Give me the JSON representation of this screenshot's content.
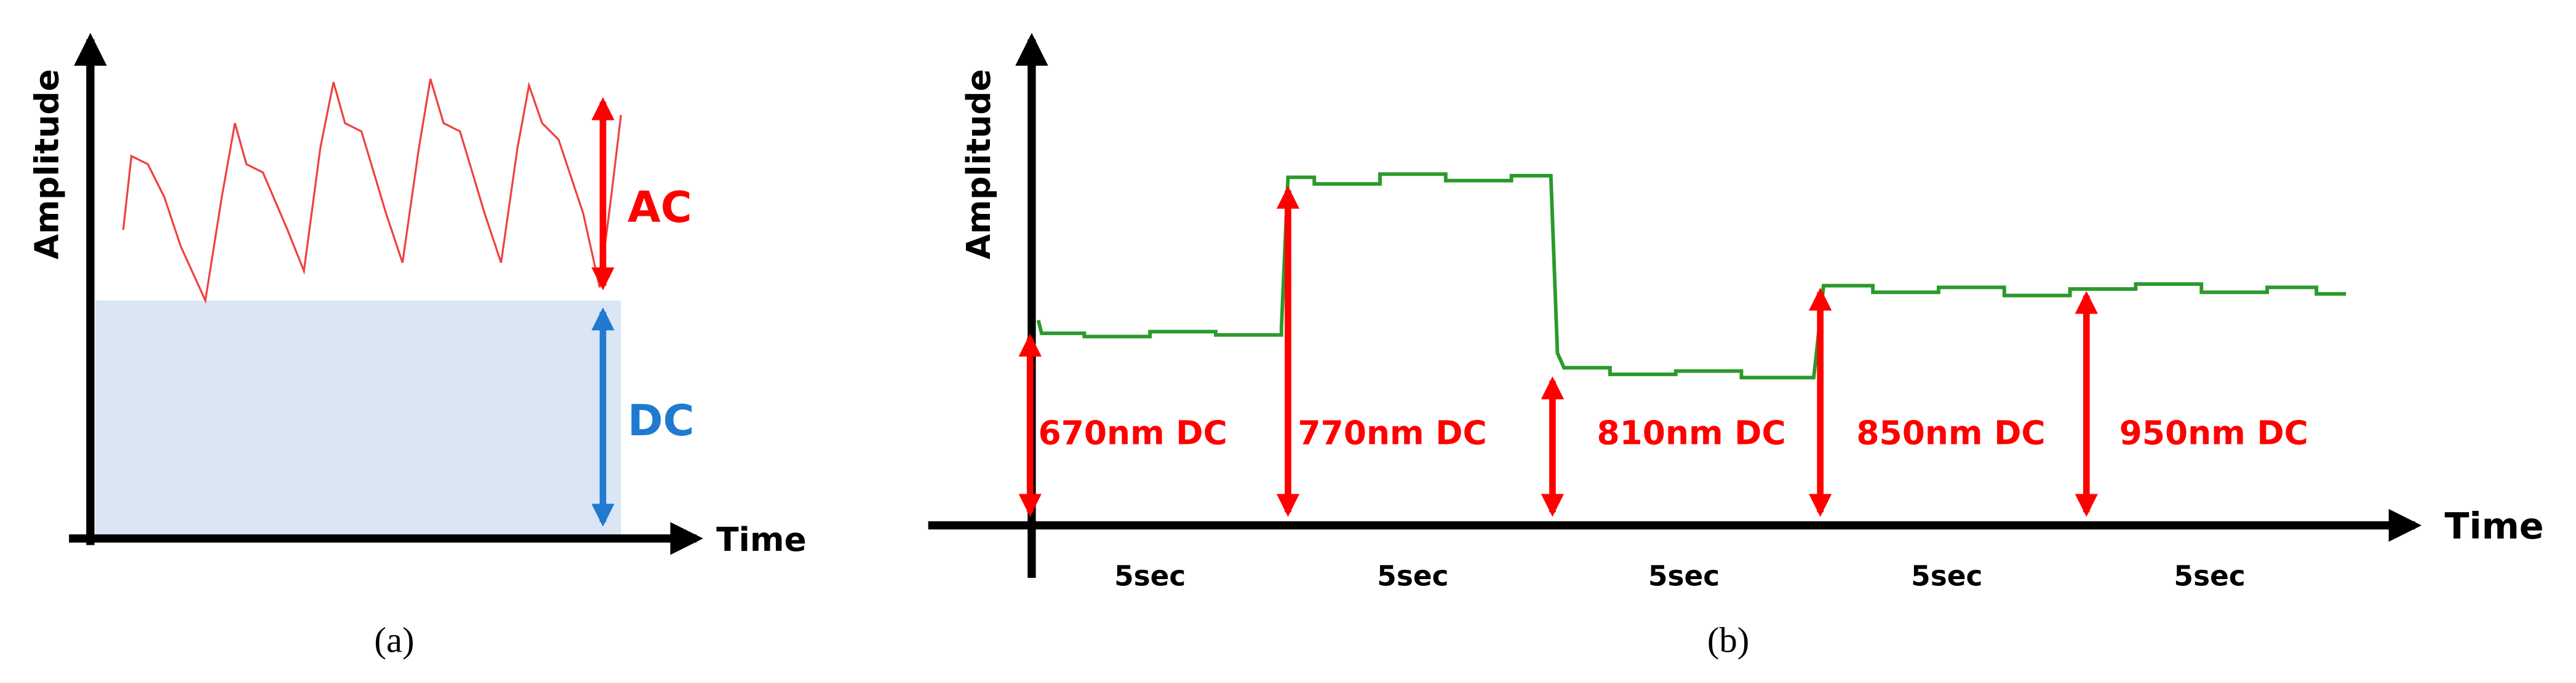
{
  "panel_a": {
    "y_axis_label": "Amplitude",
    "x_axis_label": "Time",
    "ac_label": "AC",
    "dc_label": "DC",
    "caption": "(a)"
  },
  "panel_b": {
    "y_axis_label": "Amplitude",
    "x_axis_label": "Time",
    "dc_labels": [
      "670nm DC",
      "770nm DC",
      "810nm DC",
      "850nm DC",
      "950nm DC"
    ],
    "durations": [
      "5sec",
      "5sec",
      "5sec",
      "5sec",
      "5sec"
    ],
    "caption": "(b)"
  }
}
